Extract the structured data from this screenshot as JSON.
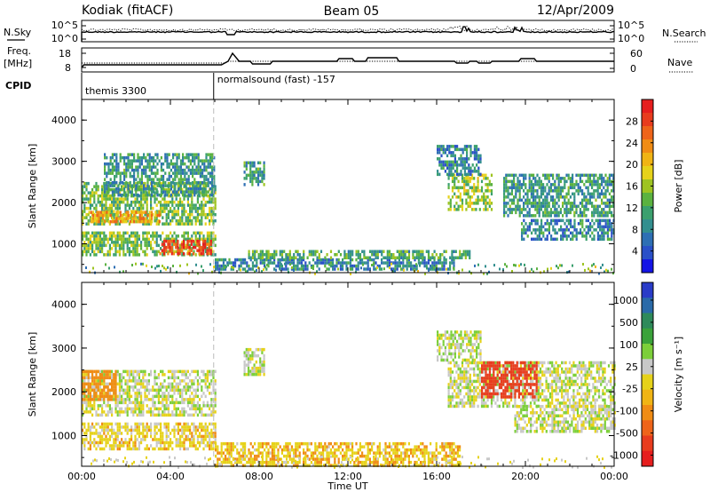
{
  "header": {
    "station": "Kodiak (fitACF)",
    "beam": "Beam 05",
    "date": "12/Apr/2009"
  },
  "strip_labels": {
    "nsky": "N.Sky",
    "nsearch": "N.Search",
    "freq": "Freq.",
    "freq_unit": "[MHz]",
    "nave": "Nave",
    "cpid": "CPID"
  },
  "strip_ticks": {
    "noise_left": [
      "10^5",
      "10^0"
    ],
    "noise_right": [
      "10^5",
      "10^0"
    ],
    "freq_left": [
      "18",
      "8"
    ],
    "nave_right": [
      "60",
      "0"
    ]
  },
  "cpid_segments": [
    {
      "start_hour": 0.0,
      "label": "themis 3300"
    },
    {
      "start_hour": 5.95,
      "label": "normalsound (fast) -157"
    }
  ],
  "chart_data": [
    {
      "type": "heatmap",
      "name": "Power",
      "ylabel": "Slant Range [km]",
      "xlabel": "",
      "ylim": [
        300,
        4500
      ],
      "xlim_hours": [
        0,
        24
      ],
      "y_ticks": [
        "1000",
        "2000",
        "3000",
        "4000"
      ],
      "colorbar": {
        "label": "Power [dB]",
        "ticks": [
          "4",
          "8",
          "12",
          "16",
          "20",
          "24",
          "28"
        ],
        "tick_values": [
          4,
          8,
          12,
          16,
          20,
          24,
          28
        ],
        "range": [
          0,
          32
        ],
        "colors": [
          "#1414e6",
          "#2a50c8",
          "#2e6fb4",
          "#338f8f",
          "#3ba06e",
          "#5bb240",
          "#9ec422",
          "#e6d21a",
          "#f0b414",
          "#f08c14",
          "#ee641a",
          "#e83c1e",
          "#e61e1e"
        ]
      },
      "regions": [
        {
          "t0": 0.0,
          "t1": 6.0,
          "r0": 1500,
          "r1": 2500,
          "v": 14
        },
        {
          "t0": 0.3,
          "t1": 3.5,
          "r0": 1550,
          "r1": 1800,
          "v": 22
        },
        {
          "t0": 0.0,
          "t1": 6.0,
          "r0": 700,
          "r1": 1300,
          "v": 14
        },
        {
          "t0": 3.5,
          "t1": 5.8,
          "r0": 750,
          "r1": 1100,
          "v": 28
        },
        {
          "t0": 1.0,
          "t1": 6.0,
          "r0": 2200,
          "r1": 3200,
          "v": 10
        },
        {
          "t0": 6.0,
          "t1": 16.8,
          "r0": 350,
          "r1": 650,
          "v": 8
        },
        {
          "t0": 7.5,
          "t1": 17.5,
          "r0": 650,
          "r1": 850,
          "v": 12
        },
        {
          "t0": 7.3,
          "t1": 8.2,
          "r0": 2400,
          "r1": 3000,
          "v": 10
        },
        {
          "t0": 16.5,
          "t1": 18.5,
          "r0": 1800,
          "r1": 2700,
          "v": 16
        },
        {
          "t0": 19.0,
          "t1": 24.0,
          "r0": 1700,
          "r1": 2700,
          "v": 10
        },
        {
          "t0": 19.8,
          "t1": 24.0,
          "r0": 1100,
          "r1": 1600,
          "v": 8
        },
        {
          "t0": 16.0,
          "t1": 18.0,
          "r0": 2700,
          "r1": 3400,
          "v": 8
        }
      ]
    },
    {
      "type": "heatmap",
      "name": "Velocity",
      "ylabel": "Slant Range [km]",
      "xlabel": "Time UT",
      "ylim": [
        300,
        4500
      ],
      "xlim_hours": [
        0,
        24
      ],
      "y_ticks": [
        "1000",
        "2000",
        "3000",
        "4000"
      ],
      "colorbar": {
        "label": "Velocity [m s⁻¹]",
        "label_main": "Velocity",
        "label_unit": "[m s",
        "label_exp": "-1",
        "label_close": "]",
        "ticks": [
          "1000",
          "500",
          "100",
          "25",
          "-25",
          "-100",
          "-500",
          "-1000"
        ],
        "colors": [
          "#2a3cc8",
          "#2a6aa8",
          "#2e8a5a",
          "#3aa23a",
          "#7ccf3a",
          "#c8c8c8",
          "#e6d21a",
          "#f0b414",
          "#f08c14",
          "#ee641a",
          "#e83c1e",
          "#e61e1e"
        ]
      },
      "regions": [
        {
          "t0": 0.0,
          "t1": 6.0,
          "r0": 1500,
          "r1": 2500,
          "v": 0
        },
        {
          "t0": 0.0,
          "t1": 1.5,
          "r0": 1800,
          "r1": 2500,
          "v": -300
        },
        {
          "t0": 0.0,
          "t1": 6.0,
          "r0": 700,
          "r1": 1300,
          "v": -60
        },
        {
          "t0": 6.0,
          "t1": 17.0,
          "r0": 350,
          "r1": 850,
          "v": -80
        },
        {
          "t0": 16.5,
          "t1": 24.0,
          "r0": 1700,
          "r1": 2700,
          "v": 0
        },
        {
          "t0": 18.0,
          "t1": 20.5,
          "r0": 1900,
          "r1": 2700,
          "v": -600
        },
        {
          "t0": 19.5,
          "t1": 24.0,
          "r0": 1100,
          "r1": 1700,
          "v": 0
        },
        {
          "t0": 7.3,
          "t1": 8.2,
          "r0": 2400,
          "r1": 3000,
          "v": 0
        },
        {
          "t0": 16.0,
          "t1": 18.0,
          "r0": 2700,
          "r1": 3400,
          "v": 0
        }
      ]
    }
  ],
  "x_axis": {
    "ticks": [
      "00:00",
      "04:00",
      "08:00",
      "12:00",
      "16:00",
      "20:00",
      "00:00"
    ],
    "title": "Time UT"
  }
}
